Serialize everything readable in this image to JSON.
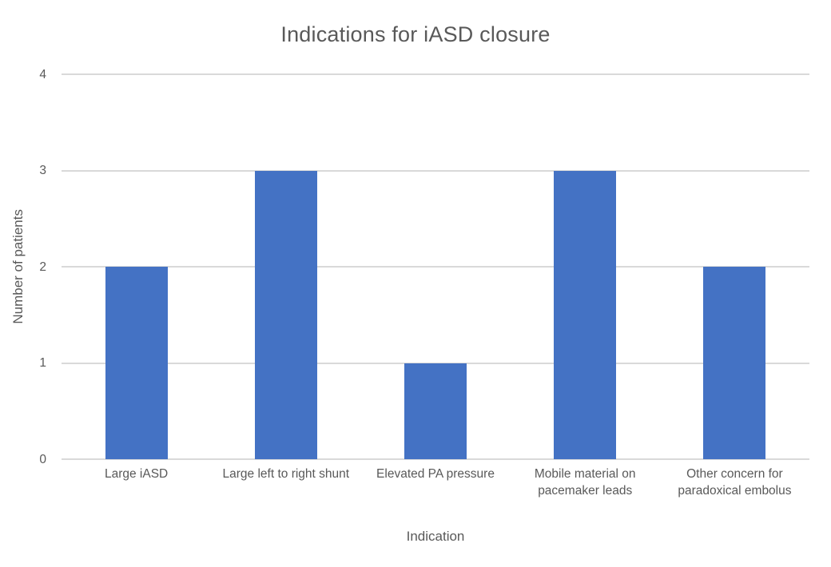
{
  "chart_data": {
    "type": "bar",
    "title": "Indications for iASD closure",
    "xlabel": "Indication",
    "ylabel": "Number of patients",
    "categories": [
      "Large iASD",
      "Large left to right shunt",
      "Elevated PA pressure",
      "Mobile material on pacemaker leads",
      "Other concern for paradoxical embolus"
    ],
    "values": [
      2,
      3,
      1,
      3,
      2
    ],
    "ylim": [
      0,
      4
    ],
    "yticks": [
      0,
      1,
      2,
      3,
      4
    ],
    "grid": "horizontal",
    "legend_position": "none",
    "bar_color": "#4472C4",
    "gridline_color": "#D9D9D9",
    "text_color": "#595959",
    "background_color": "#FFFFFF"
  }
}
